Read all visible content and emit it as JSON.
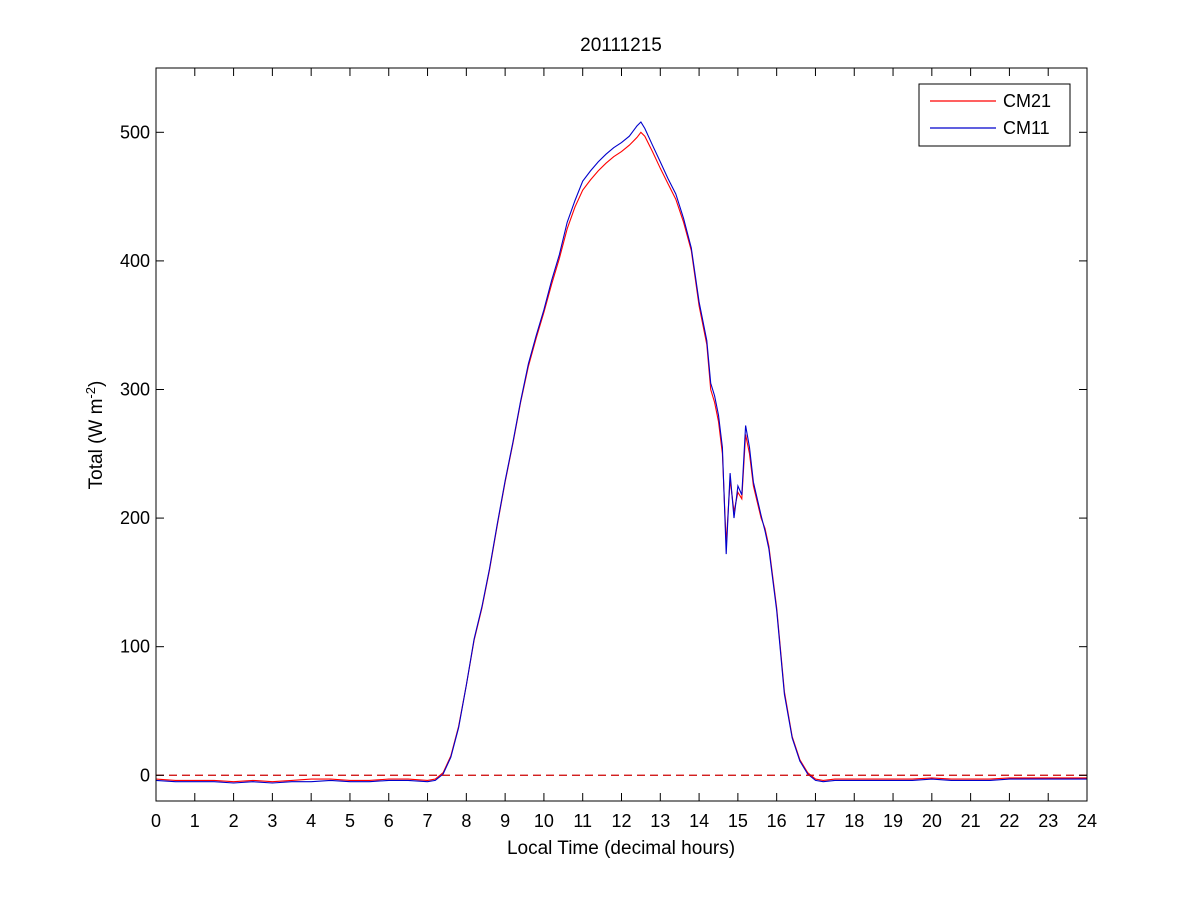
{
  "chart_data": {
    "type": "line",
    "title": "20111215",
    "xlabel": "Local Time (decimal hours)",
    "ylabel": {
      "prefix": "Total (W m",
      "superscript": "-2",
      "suffix": ")"
    },
    "xlim": [
      0,
      24
    ],
    "ylim": [
      -20,
      550
    ],
    "xticks": [
      0,
      1,
      2,
      3,
      4,
      5,
      6,
      7,
      8,
      9,
      10,
      11,
      12,
      13,
      14,
      15,
      16,
      17,
      18,
      19,
      20,
      21,
      22,
      23,
      24
    ],
    "yticks": [
      0,
      100,
      200,
      300,
      400,
      500
    ],
    "grid": false,
    "legend": {
      "placement": "top-right",
      "entries": [
        "CM21",
        "CM11"
      ]
    },
    "reference_line": {
      "y": 0,
      "style": "dashed",
      "color": "#cc0000"
    },
    "series": [
      {
        "name": "CM21",
        "color": "#ff0000",
        "points": [
          [
            0,
            -3
          ],
          [
            0.5,
            -4
          ],
          [
            1,
            -4
          ],
          [
            1.5,
            -4
          ],
          [
            2,
            -5
          ],
          [
            2.5,
            -4
          ],
          [
            3,
            -5
          ],
          [
            3.5,
            -4
          ],
          [
            4,
            -3
          ],
          [
            4.5,
            -3
          ],
          [
            5,
            -4
          ],
          [
            5.5,
            -4
          ],
          [
            6,
            -3
          ],
          [
            6.5,
            -3
          ],
          [
            7,
            -4
          ],
          [
            7.2,
            -3
          ],
          [
            7.4,
            2
          ],
          [
            7.6,
            15
          ],
          [
            7.8,
            38
          ],
          [
            8,
            70
          ],
          [
            8.2,
            105
          ],
          [
            8.4,
            130
          ],
          [
            8.6,
            160
          ],
          [
            8.8,
            195
          ],
          [
            9,
            228
          ],
          [
            9.2,
            258
          ],
          [
            9.4,
            290
          ],
          [
            9.6,
            318
          ],
          [
            9.8,
            340
          ],
          [
            10,
            360
          ],
          [
            10.2,
            382
          ],
          [
            10.4,
            402
          ],
          [
            10.6,
            425
          ],
          [
            10.8,
            442
          ],
          [
            11,
            455
          ],
          [
            11.2,
            463
          ],
          [
            11.4,
            470
          ],
          [
            11.6,
            476
          ],
          [
            11.8,
            481
          ],
          [
            12,
            485
          ],
          [
            12.2,
            490
          ],
          [
            12.4,
            496
          ],
          [
            12.5,
            500
          ],
          [
            12.6,
            497
          ],
          [
            12.8,
            485
          ],
          [
            13,
            472
          ],
          [
            13.2,
            460
          ],
          [
            13.4,
            448
          ],
          [
            13.6,
            430
          ],
          [
            13.8,
            408
          ],
          [
            14,
            365
          ],
          [
            14.2,
            335
          ],
          [
            14.3,
            300
          ],
          [
            14.4,
            290
          ],
          [
            14.5,
            275
          ],
          [
            14.6,
            250
          ],
          [
            14.7,
            180
          ],
          [
            14.8,
            230
          ],
          [
            14.9,
            205
          ],
          [
            15,
            220
          ],
          [
            15.1,
            215
          ],
          [
            15.2,
            265
          ],
          [
            15.3,
            250
          ],
          [
            15.4,
            225
          ],
          [
            15.6,
            200
          ],
          [
            15.7,
            192
          ],
          [
            15.8,
            178
          ],
          [
            16,
            130
          ],
          [
            16.2,
            65
          ],
          [
            16.4,
            30
          ],
          [
            16.6,
            12
          ],
          [
            16.8,
            2
          ],
          [
            17,
            -3
          ],
          [
            17.2,
            -4
          ],
          [
            17.5,
            -3
          ],
          [
            18,
            -3
          ],
          [
            18.5,
            -3
          ],
          [
            19,
            -3
          ],
          [
            19.5,
            -3
          ],
          [
            20,
            -2
          ],
          [
            20.5,
            -3
          ],
          [
            21,
            -3
          ],
          [
            21.5,
            -3
          ],
          [
            22,
            -2
          ],
          [
            22.5,
            -2
          ],
          [
            23,
            -2
          ],
          [
            23.5,
            -2
          ],
          [
            24,
            -2
          ]
        ]
      },
      {
        "name": "CM11",
        "color": "#0000cc",
        "points": [
          [
            0,
            -4
          ],
          [
            0.5,
            -5
          ],
          [
            1,
            -5
          ],
          [
            1.5,
            -5
          ],
          [
            2,
            -6
          ],
          [
            2.5,
            -5
          ],
          [
            3,
            -6
          ],
          [
            3.5,
            -5
          ],
          [
            4,
            -5
          ],
          [
            4.5,
            -4
          ],
          [
            5,
            -5
          ],
          [
            5.5,
            -5
          ],
          [
            6,
            -4
          ],
          [
            6.5,
            -4
          ],
          [
            7,
            -5
          ],
          [
            7.2,
            -4
          ],
          [
            7.4,
            1
          ],
          [
            7.6,
            14
          ],
          [
            7.8,
            37
          ],
          [
            8,
            70
          ],
          [
            8.2,
            106
          ],
          [
            8.4,
            131
          ],
          [
            8.6,
            161
          ],
          [
            8.8,
            196
          ],
          [
            9,
            229
          ],
          [
            9.2,
            259
          ],
          [
            9.4,
            291
          ],
          [
            9.6,
            320
          ],
          [
            9.8,
            342
          ],
          [
            10,
            362
          ],
          [
            10.2,
            385
          ],
          [
            10.4,
            405
          ],
          [
            10.6,
            430
          ],
          [
            10.8,
            447
          ],
          [
            11,
            462
          ],
          [
            11.2,
            470
          ],
          [
            11.4,
            477
          ],
          [
            11.6,
            483
          ],
          [
            11.8,
            488
          ],
          [
            12,
            492
          ],
          [
            12.2,
            497
          ],
          [
            12.4,
            505
          ],
          [
            12.5,
            508
          ],
          [
            12.6,
            503
          ],
          [
            12.8,
            490
          ],
          [
            13,
            477
          ],
          [
            13.2,
            464
          ],
          [
            13.4,
            452
          ],
          [
            13.6,
            433
          ],
          [
            13.8,
            410
          ],
          [
            14,
            368
          ],
          [
            14.2,
            338
          ],
          [
            14.3,
            305
          ],
          [
            14.4,
            295
          ],
          [
            14.5,
            280
          ],
          [
            14.6,
            255
          ],
          [
            14.7,
            172
          ],
          [
            14.8,
            235
          ],
          [
            14.9,
            200
          ],
          [
            15,
            225
          ],
          [
            15.1,
            218
          ],
          [
            15.2,
            272
          ],
          [
            15.3,
            255
          ],
          [
            15.4,
            228
          ],
          [
            15.6,
            202
          ],
          [
            15.7,
            190
          ],
          [
            15.8,
            176
          ],
          [
            16,
            128
          ],
          [
            16.2,
            63
          ],
          [
            16.4,
            29
          ],
          [
            16.6,
            11
          ],
          [
            16.8,
            1
          ],
          [
            17,
            -4
          ],
          [
            17.2,
            -5
          ],
          [
            17.5,
            -4
          ],
          [
            18,
            -4
          ],
          [
            18.5,
            -4
          ],
          [
            19,
            -4
          ],
          [
            19.5,
            -4
          ],
          [
            20,
            -3
          ],
          [
            20.5,
            -4
          ],
          [
            21,
            -4
          ],
          [
            21.5,
            -4
          ],
          [
            22,
            -3
          ],
          [
            22.5,
            -3
          ],
          [
            23,
            -3
          ],
          [
            23.5,
            -3
          ],
          [
            24,
            -3
          ]
        ]
      }
    ]
  }
}
